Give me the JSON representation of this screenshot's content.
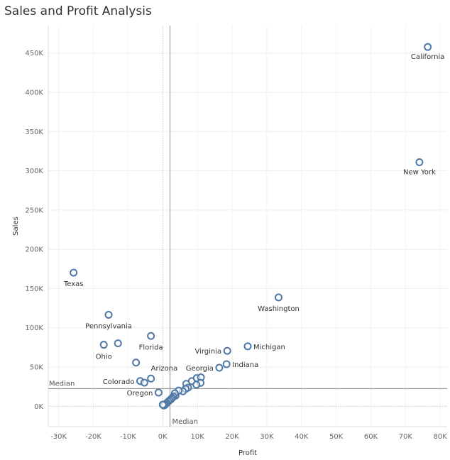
{
  "chart_data": {
    "type": "scatter",
    "title": "Sales and Profit Analysis",
    "xlabel": "Profit",
    "ylabel": "Sales",
    "xlim": [
      -33000,
      82000
    ],
    "ylim": [
      -26000,
      485000
    ],
    "x_ticks": [
      -30000,
      -20000,
      -10000,
      0,
      10000,
      20000,
      30000,
      40000,
      50000,
      60000,
      70000,
      80000
    ],
    "x_tick_labels": [
      "-30K",
      "-20K",
      "-10K",
      "0K",
      "10K",
      "20K",
      "30K",
      "40K",
      "50K",
      "60K",
      "70K",
      "80K"
    ],
    "y_ticks": [
      0,
      50000,
      100000,
      150000,
      200000,
      250000,
      300000,
      350000,
      400000,
      450000
    ],
    "y_tick_labels": [
      "0K",
      "50K",
      "100K",
      "150K",
      "200K",
      "250K",
      "300K",
      "350K",
      "400K",
      "450K"
    ],
    "grid": true,
    "median_lines": {
      "x": 2100,
      "y": 22500,
      "x_label": "Median",
      "y_label": "Median"
    },
    "point_color": "#4e79a7",
    "points": [
      {
        "label": "California",
        "x": 76400,
        "y": 457700
      },
      {
        "label": "New York",
        "x": 74000,
        "y": 310900
      },
      {
        "label": "Texas",
        "x": -25700,
        "y": 170200
      },
      {
        "label": "Washington",
        "x": 33400,
        "y": 138600
      },
      {
        "label": "Pennsylvania",
        "x": -15600,
        "y": 116500
      },
      {
        "label": "Florida",
        "x": -3400,
        "y": 89500
      },
      {
        "label": "Ohio",
        "x": -17000,
        "y": 78300
      },
      {
        "label": "Michigan",
        "x": 24500,
        "y": 76300
      },
      {
        "label": "Virginia",
        "x": 18600,
        "y": 70600
      },
      {
        "label": "Indiana",
        "x": 18400,
        "y": 53600
      },
      {
        "label": "Arizona",
        "x": -3400,
        "y": 35300
      },
      {
        "label": "Georgia",
        "x": 16300,
        "y": 49100
      },
      {
        "label": "Colorado",
        "x": -6500,
        "y": 32100
      },
      {
        "label": "Oregon",
        "x": -1200,
        "y": 17400
      },
      {
        "label": "",
        "x": -12900,
        "y": 80200
      },
      {
        "label": "",
        "x": -7700,
        "y": 55600
      },
      {
        "label": "",
        "x": -5300,
        "y": 30000
      },
      {
        "label": "",
        "x": 6800,
        "y": 28500
      },
      {
        "label": "",
        "x": 8400,
        "y": 32000
      },
      {
        "label": "",
        "x": 9800,
        "y": 35800
      },
      {
        "label": "",
        "x": 11000,
        "y": 36800
      },
      {
        "label": "",
        "x": 10900,
        "y": 29700
      },
      {
        "label": "",
        "x": 9700,
        "y": 27500
      },
      {
        "label": "",
        "x": 7300,
        "y": 23700
      },
      {
        "label": "",
        "x": 6600,
        "y": 22100
      },
      {
        "label": "",
        "x": 5800,
        "y": 19000
      },
      {
        "label": "",
        "x": 4600,
        "y": 20000
      },
      {
        "label": "",
        "x": 3700,
        "y": 13500
      },
      {
        "label": "",
        "x": 3500,
        "y": 16500
      },
      {
        "label": "",
        "x": 3100,
        "y": 12200
      },
      {
        "label": "",
        "x": 2700,
        "y": 10500
      },
      {
        "label": "",
        "x": 2400,
        "y": 9000
      },
      {
        "label": "",
        "x": 2000,
        "y": 7500
      },
      {
        "label": "",
        "x": 1600,
        "y": 6000
      },
      {
        "label": "",
        "x": 1200,
        "y": 4300
      },
      {
        "label": "",
        "x": 900,
        "y": 2900
      },
      {
        "label": "",
        "x": 600,
        "y": 1600
      },
      {
        "label": "",
        "x": 300,
        "y": 900
      },
      {
        "label": "",
        "x": 0,
        "y": 2000
      }
    ]
  }
}
